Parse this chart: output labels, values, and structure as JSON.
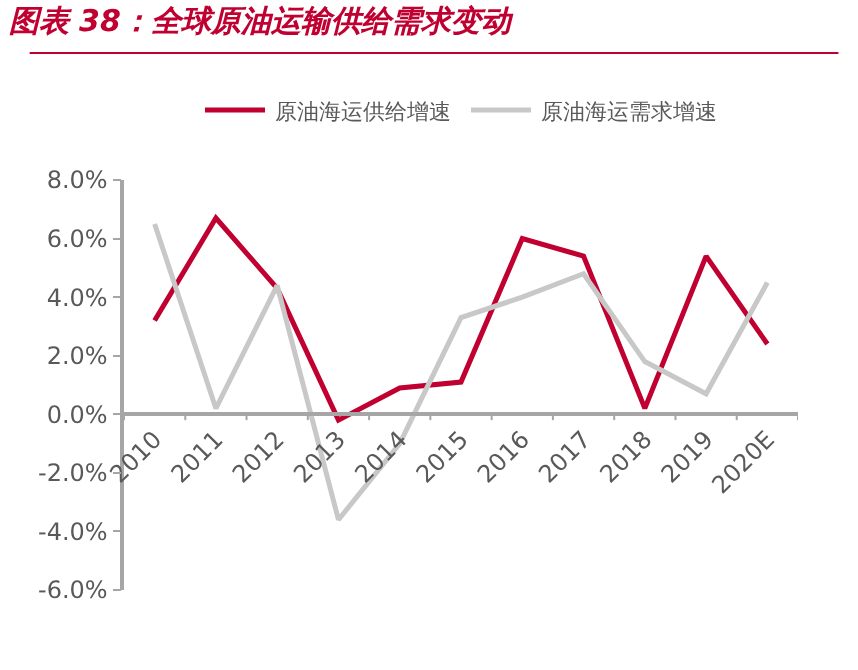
{
  "chart_data": {
    "type": "line",
    "title": "图表 38：全球原油运输供给需求变动",
    "categories": [
      "2010",
      "2011",
      "2012",
      "2013",
      "2014",
      "2015",
      "2016",
      "2017",
      "2018",
      "2019",
      "2020E"
    ],
    "series": [
      {
        "name": "原油海运供给增速",
        "color": "#c00030",
        "values": [
          3.2,
          6.7,
          4.3,
          -0.2,
          0.9,
          1.1,
          6.0,
          5.4,
          0.2,
          5.4,
          2.4
        ]
      },
      {
        "name": "原油海运需求增速",
        "color": "#c8c8c8",
        "values": [
          6.5,
          0.2,
          4.4,
          -3.6,
          -1.0,
          3.3,
          4.0,
          4.8,
          1.8,
          0.7,
          4.5
        ]
      }
    ],
    "ylim": [
      -6,
      8
    ],
    "yticks": [
      {
        "value": -6,
        "label": "-6.0%"
      },
      {
        "value": -4,
        "label": "-4.0%"
      },
      {
        "value": -2,
        "label": "-2.0%"
      },
      {
        "value": 0,
        "label": "0.0%"
      },
      {
        "value": 2,
        "label": "2.0%"
      },
      {
        "value": 4,
        "label": "4.0%"
      },
      {
        "value": 6,
        "label": "6.0%"
      },
      {
        "value": 8,
        "label": "8.0%"
      }
    ],
    "legend": "top",
    "marker": "none",
    "line_style": "solid"
  }
}
